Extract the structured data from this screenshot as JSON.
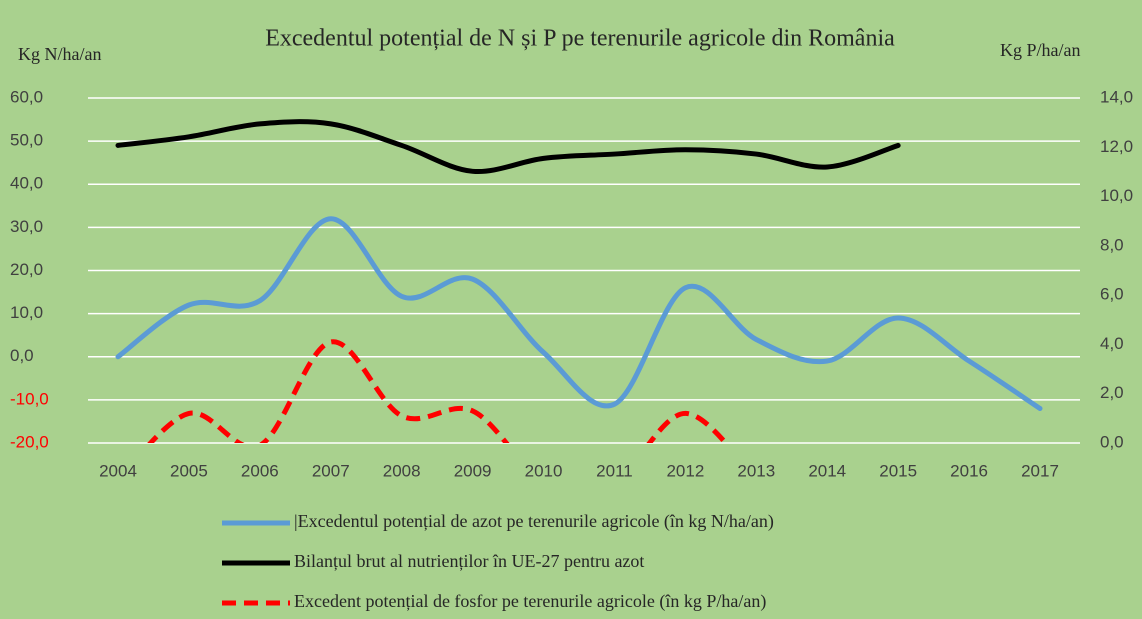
{
  "chart_data": {
    "type": "line",
    "title": "Excedentul potențial de N și P pe terenurile agricole din România",
    "y_label": "Kg N/ha/an",
    "y2_label": "Kg P/ha/an",
    "categories": [
      "2004",
      "2005",
      "2006",
      "2007",
      "2008",
      "2009",
      "2010",
      "2011",
      "2012",
      "2013",
      "2014",
      "2015",
      "2016",
      "2017"
    ],
    "ylim": [
      -20,
      60
    ],
    "yticks": [
      {
        "value": -20,
        "label": "-20,0"
      },
      {
        "value": -10,
        "label": "-10,0"
      },
      {
        "value": 0,
        "label": "0,0"
      },
      {
        "value": 10,
        "label": "10,0"
      },
      {
        "value": 20,
        "label": "20,0"
      },
      {
        "value": 30,
        "label": "30,0"
      },
      {
        "value": 40,
        "label": "40,0"
      },
      {
        "value": 50,
        "label": "50,0"
      },
      {
        "value": 60,
        "label": "60,0"
      }
    ],
    "y2lim": [
      0,
      14
    ],
    "y2ticks": [
      {
        "value": 0,
        "label": "0,0"
      },
      {
        "value": 2,
        "label": "2,0"
      },
      {
        "value": 4,
        "label": "4,0"
      },
      {
        "value": 6,
        "label": "6,0"
      },
      {
        "value": 8,
        "label": "8,0"
      },
      {
        "value": 10,
        "label": "10,0"
      },
      {
        "value": 12,
        "label": "12,0"
      },
      {
        "value": 14,
        "label": "14,0"
      }
    ],
    "grid": true,
    "legend": "bottom",
    "series": [
      {
        "name": "|Excedentul potențial de azot pe terenurile agricole (în kg N/ha/an)",
        "color": "#5b9bd5",
        "values": [
          0,
          12,
          13,
          32,
          14,
          18,
          1,
          -11,
          16,
          4,
          -1,
          9,
          -1,
          -12
        ]
      },
      {
        "name": "Bilanțul brut al nutrienților în UE-27 pentru azot",
        "color": "#000000",
        "values": [
          49,
          51,
          54,
          54,
          49,
          43,
          46,
          47,
          48,
          47,
          44,
          49,
          null,
          null
        ]
      },
      {
        "name": "Excedent potențial de fosfor pe terenurile agricole (în kg P/ha/an)",
        "color": "#ff0000",
        "dashed": true,
        "axis": "y2",
        "values": [
          -1.5,
          1.2,
          -0.1,
          4.1,
          1.1,
          1.3,
          -1.5,
          -1.5,
          1.2,
          -1.5,
          null,
          null,
          null,
          null
        ]
      }
    ]
  }
}
